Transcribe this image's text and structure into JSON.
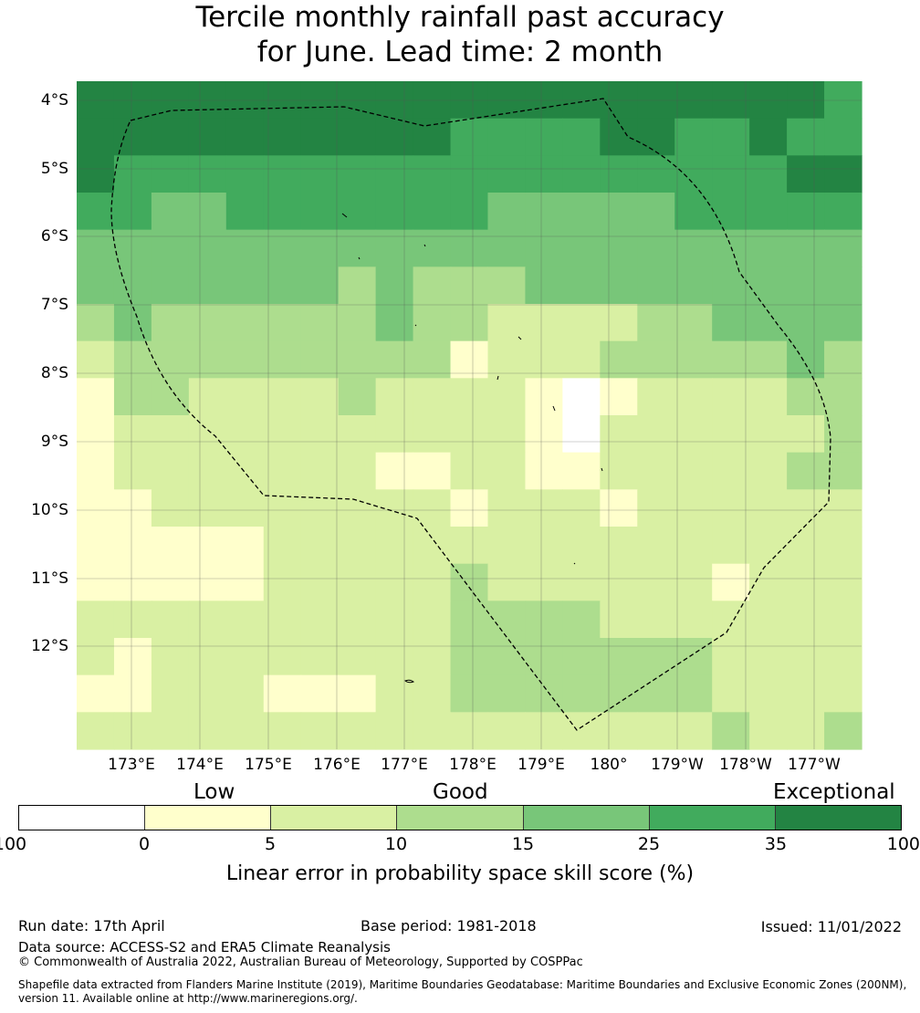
{
  "title_line1": "Tercile monthly rainfall past accuracy",
  "title_line2": "for June. Lead time: 2 month",
  "lat_labels": [
    "4°S",
    "5°S",
    "6°S",
    "7°S",
    "8°S",
    "9°S",
    "10°S",
    "11°S",
    "12°S"
  ],
  "lon_labels": [
    "173°E",
    "174°E",
    "175°E",
    "176°E",
    "177°E",
    "178°E",
    "179°E",
    "180°",
    "179°W",
    "178°W",
    "177°W"
  ],
  "colorbar": {
    "categories": [
      "Low",
      "Good",
      "Exceptional"
    ],
    "ticks": [
      "-100",
      "0",
      "5",
      "10",
      "15",
      "25",
      "35",
      "100"
    ],
    "colors": [
      "#ffffff",
      "#ffffcc",
      "#d9f0a3",
      "#addd8e",
      "#78c679",
      "#41ab5d",
      "#238443"
    ],
    "title": "Linear error in probability space skill score (%)"
  },
  "grid": {
    "legend": "0 = <0 (white), 1 = 0-5, 2 = 5-10, 3 = 10-15, 4 = 15-25, 5 = 25-35, 6 = 35-100",
    "rows": [
      [
        6,
        6,
        6,
        6,
        6,
        6,
        6,
        6,
        6,
        6,
        6,
        6,
        6,
        6,
        6,
        6,
        6,
        6,
        6,
        6,
        5
      ],
      [
        6,
        6,
        6,
        6,
        6,
        6,
        6,
        6,
        6,
        6,
        5,
        5,
        5,
        5,
        6,
        6,
        5,
        5,
        6,
        5,
        5
      ],
      [
        6,
        5,
        5,
        5,
        5,
        5,
        5,
        5,
        5,
        5,
        5,
        5,
        5,
        5,
        5,
        5,
        5,
        5,
        5,
        6,
        6
      ],
      [
        5,
        5,
        4,
        4,
        5,
        5,
        5,
        5,
        5,
        5,
        5,
        4,
        4,
        4,
        4,
        4,
        5,
        5,
        5,
        5,
        5
      ],
      [
        4,
        4,
        4,
        4,
        4,
        4,
        4,
        4,
        4,
        4,
        4,
        4,
        4,
        4,
        4,
        4,
        4,
        4,
        4,
        4,
        4
      ],
      [
        4,
        4,
        4,
        4,
        4,
        4,
        4,
        3,
        4,
        3,
        3,
        3,
        4,
        4,
        4,
        4,
        4,
        4,
        4,
        4,
        4
      ],
      [
        3,
        4,
        3,
        3,
        3,
        3,
        3,
        3,
        4,
        3,
        3,
        2,
        2,
        2,
        2,
        3,
        3,
        4,
        4,
        4,
        4
      ],
      [
        2,
        3,
        3,
        3,
        3,
        3,
        3,
        3,
        3,
        3,
        1,
        2,
        2,
        2,
        3,
        3,
        3,
        3,
        3,
        4,
        3
      ],
      [
        1,
        3,
        3,
        2,
        2,
        2,
        2,
        3,
        2,
        2,
        2,
        2,
        1,
        0,
        1,
        2,
        2,
        2,
        2,
        3,
        3
      ],
      [
        1,
        2,
        2,
        2,
        2,
        2,
        2,
        2,
        2,
        2,
        2,
        2,
        1,
        0,
        2,
        2,
        2,
        2,
        2,
        2,
        3
      ],
      [
        1,
        2,
        2,
        2,
        2,
        2,
        2,
        2,
        1,
        1,
        2,
        2,
        1,
        1,
        2,
        2,
        2,
        2,
        2,
        3,
        3
      ],
      [
        1,
        1,
        2,
        2,
        2,
        2,
        2,
        2,
        2,
        2,
        1,
        2,
        2,
        2,
        1,
        2,
        2,
        2,
        2,
        2,
        2
      ],
      [
        1,
        1,
        1,
        1,
        1,
        2,
        2,
        2,
        2,
        2,
        2,
        2,
        2,
        2,
        2,
        2,
        2,
        2,
        2,
        2,
        2
      ],
      [
        1,
        1,
        1,
        1,
        1,
        2,
        2,
        2,
        2,
        2,
        3,
        2,
        2,
        2,
        2,
        2,
        2,
        1,
        2,
        2,
        2
      ],
      [
        2,
        2,
        2,
        2,
        2,
        2,
        2,
        2,
        2,
        2,
        3,
        3,
        3,
        3,
        2,
        2,
        2,
        2,
        2,
        2,
        2
      ],
      [
        2,
        1,
        2,
        2,
        2,
        2,
        2,
        2,
        2,
        2,
        3,
        3,
        3,
        3,
        3,
        3,
        3,
        2,
        2,
        2,
        2
      ],
      [
        1,
        1,
        2,
        2,
        2,
        1,
        1,
        1,
        2,
        2,
        3,
        3,
        3,
        3,
        3,
        3,
        3,
        2,
        2,
        2,
        2
      ],
      [
        2,
        2,
        2,
        2,
        2,
        2,
        2,
        2,
        2,
        2,
        2,
        2,
        2,
        2,
        2,
        2,
        2,
        3,
        2,
        2,
        3
      ]
    ]
  },
  "footer": {
    "run_date": "Run date: 17th April",
    "base_period": "Base period: 1981-2018",
    "issued": "Issued: 11/01/2022",
    "data_source": "Data source: ACCESS-S2 and ERA5 Climate Reanalysis",
    "copyright": "© Commonwealth of Australia 2022, Australian Bureau of Meteorology, Supported by COSPPac",
    "shapefile": "Shapefile data extracted from Flanders Marine Institute (2019), Maritime Boundaries Geodatabase: Maritime Boundaries and Exclusive Economic Zones (200NM), version 11. Available online at http://www.marineregions.org/."
  }
}
